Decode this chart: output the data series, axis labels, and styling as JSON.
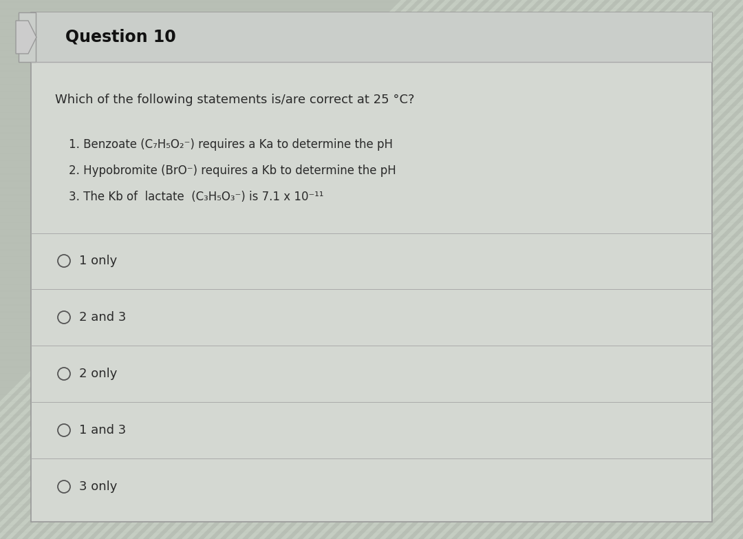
{
  "title": "Question 10",
  "question": "Which of the following statements is/are correct at 25 °C?",
  "statements": [
    "1. Benzoate (C₇H₅O₂⁻) requires a Ka to determine the pH",
    "2. Hypobromite (BrO⁻) requires a Kb to determine the pH",
    "3. The Kb of  lactate  (C₃H₅O₃⁻) is 7.1 x 10⁻¹¹"
  ],
  "options": [
    "1 only",
    "2 and 3",
    "2 only",
    "1 and 3",
    "3 only"
  ],
  "bg_stripe_color1": "#b8bfb5",
  "bg_stripe_color2": "#c5cdc2",
  "card_color": "#d4d8d2",
  "title_bar_color": "#caceca",
  "text_color": "#2a2a2a",
  "title_color": "#111111",
  "separator_color": "#aaaaaa",
  "circle_color": "#555555",
  "font_size_title": 17,
  "font_size_question": 13,
  "font_size_statements": 12,
  "font_size_options": 13
}
